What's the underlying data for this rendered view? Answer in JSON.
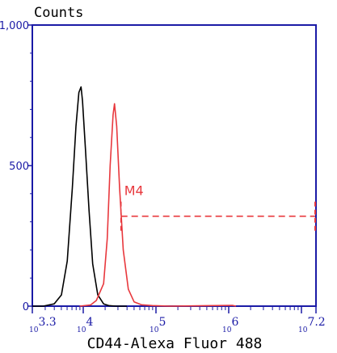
{
  "chart_data": {
    "type": "line",
    "ylabel": "Counts",
    "xlabel": "CD44-Alexa Fluor 488",
    "x_scale": "log",
    "xlim": [
      3.3,
      7.2
    ],
    "ylim": [
      0,
      1000
    ],
    "y_ticks": [
      "0",
      "500",
      "1,000"
    ],
    "x_tick_labels": [
      {
        "exp": 3.3,
        "base": "10",
        "sup": "3.3"
      },
      {
        "exp": 4,
        "base": "10",
        "sup": "4"
      },
      {
        "exp": 5,
        "base": "10",
        "sup": "5"
      },
      {
        "exp": 6,
        "base": "10",
        "sup": "6"
      },
      {
        "exp": 7.2,
        "base": "10",
        "sup": "7.2"
      }
    ],
    "series": [
      {
        "color": "#000000",
        "points": [
          [
            3.3,
            0
          ],
          [
            3.45,
            0
          ],
          [
            3.6,
            8
          ],
          [
            3.7,
            40
          ],
          [
            3.78,
            160
          ],
          [
            3.85,
            420
          ],
          [
            3.9,
            640
          ],
          [
            3.94,
            760
          ],
          [
            3.97,
            780
          ],
          [
            3.99,
            730
          ],
          [
            4.03,
            560
          ],
          [
            4.08,
            340
          ],
          [
            4.13,
            150
          ],
          [
            4.2,
            40
          ],
          [
            4.28,
            8
          ],
          [
            4.35,
            2
          ],
          [
            4.45,
            0
          ],
          [
            4.6,
            0
          ]
        ]
      },
      {
        "color": "#e8383d",
        "points": [
          [
            3.95,
            0
          ],
          [
            4.1,
            4
          ],
          [
            4.18,
            20
          ],
          [
            4.28,
            80
          ],
          [
            4.33,
            240
          ],
          [
            4.37,
            500
          ],
          [
            4.41,
            680
          ],
          [
            4.43,
            720
          ],
          [
            4.46,
            640
          ],
          [
            4.5,
            420
          ],
          [
            4.55,
            200
          ],
          [
            4.62,
            60
          ],
          [
            4.7,
            15
          ],
          [
            4.8,
            5
          ],
          [
            4.95,
            2
          ],
          [
            5.2,
            0
          ],
          [
            6.05,
            3
          ],
          [
            6.1,
            0
          ]
        ]
      }
    ],
    "gates": [
      {
        "label": "M4",
        "color": "#e8383d",
        "x_range": [
          4.43,
          7.2
        ],
        "y": 320
      }
    ],
    "axis_color": "#1a1aa6",
    "grid": false,
    "legend": "none"
  }
}
